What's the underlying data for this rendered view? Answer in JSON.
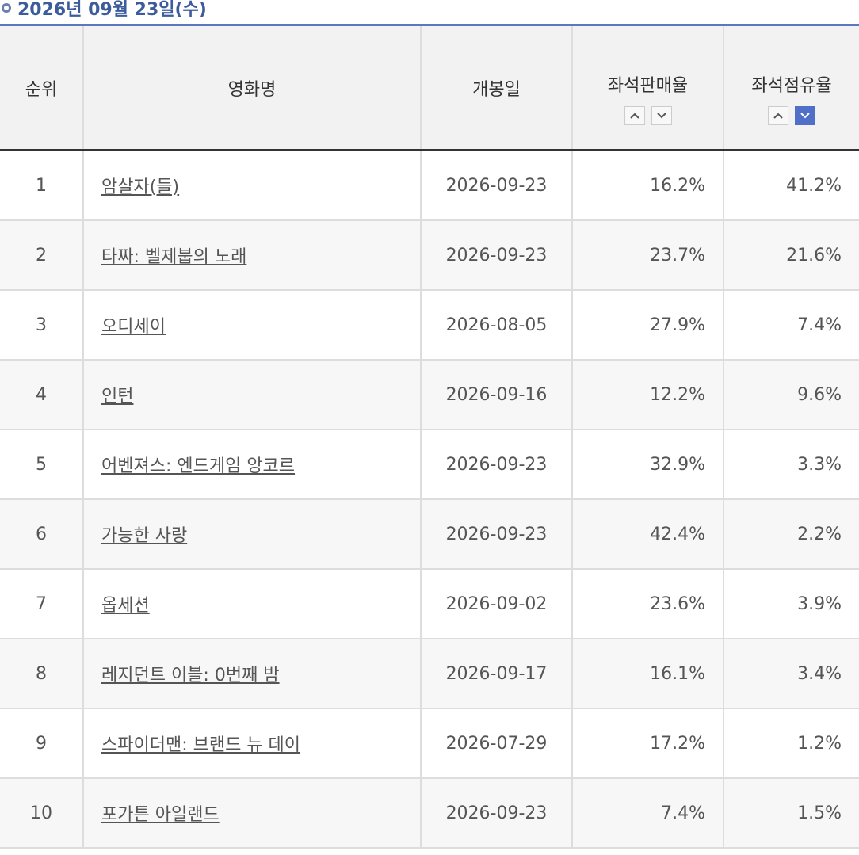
{
  "header": {
    "date": "2026년 09월 23일(수)"
  },
  "table": {
    "columns": [
      "순위",
      "영화명",
      "개봉일",
      "좌석판매율",
      "좌석점유율"
    ],
    "rows": [
      [
        "1",
        "암살자(들)",
        "2026-09-23",
        "16.2%",
        "41.2%"
      ],
      [
        "2",
        "타짜: 벨제붑의 노래",
        "2026-09-23",
        "23.7%",
        "21.6%"
      ],
      [
        "3",
        "오디세이",
        "2026-08-05",
        "27.9%",
        "7.4%"
      ],
      [
        "4",
        "인턴",
        "2026-09-16",
        "12.2%",
        "9.6%"
      ],
      [
        "5",
        "어벤져스: 엔드게임 앙코르",
        "2026-09-23",
        "32.9%",
        "3.3%"
      ],
      [
        "6",
        "가능한 사랑",
        "2026-09-23",
        "42.4%",
        "2.2%"
      ],
      [
        "7",
        "옵세션",
        "2026-09-02",
        "23.6%",
        "3.9%"
      ],
      [
        "8",
        "레지던트 이블: 0번째 밤",
        "2026-09-17",
        "16.1%",
        "3.4%"
      ],
      [
        "9",
        "스파이더맨: 브랜드 뉴 데이",
        "2026-07-29",
        "17.2%",
        "1.2%"
      ],
      [
        "10",
        "포가튼 아일랜드",
        "2026-09-23",
        "7.4%",
        "1.5%"
      ]
    ]
  }
}
